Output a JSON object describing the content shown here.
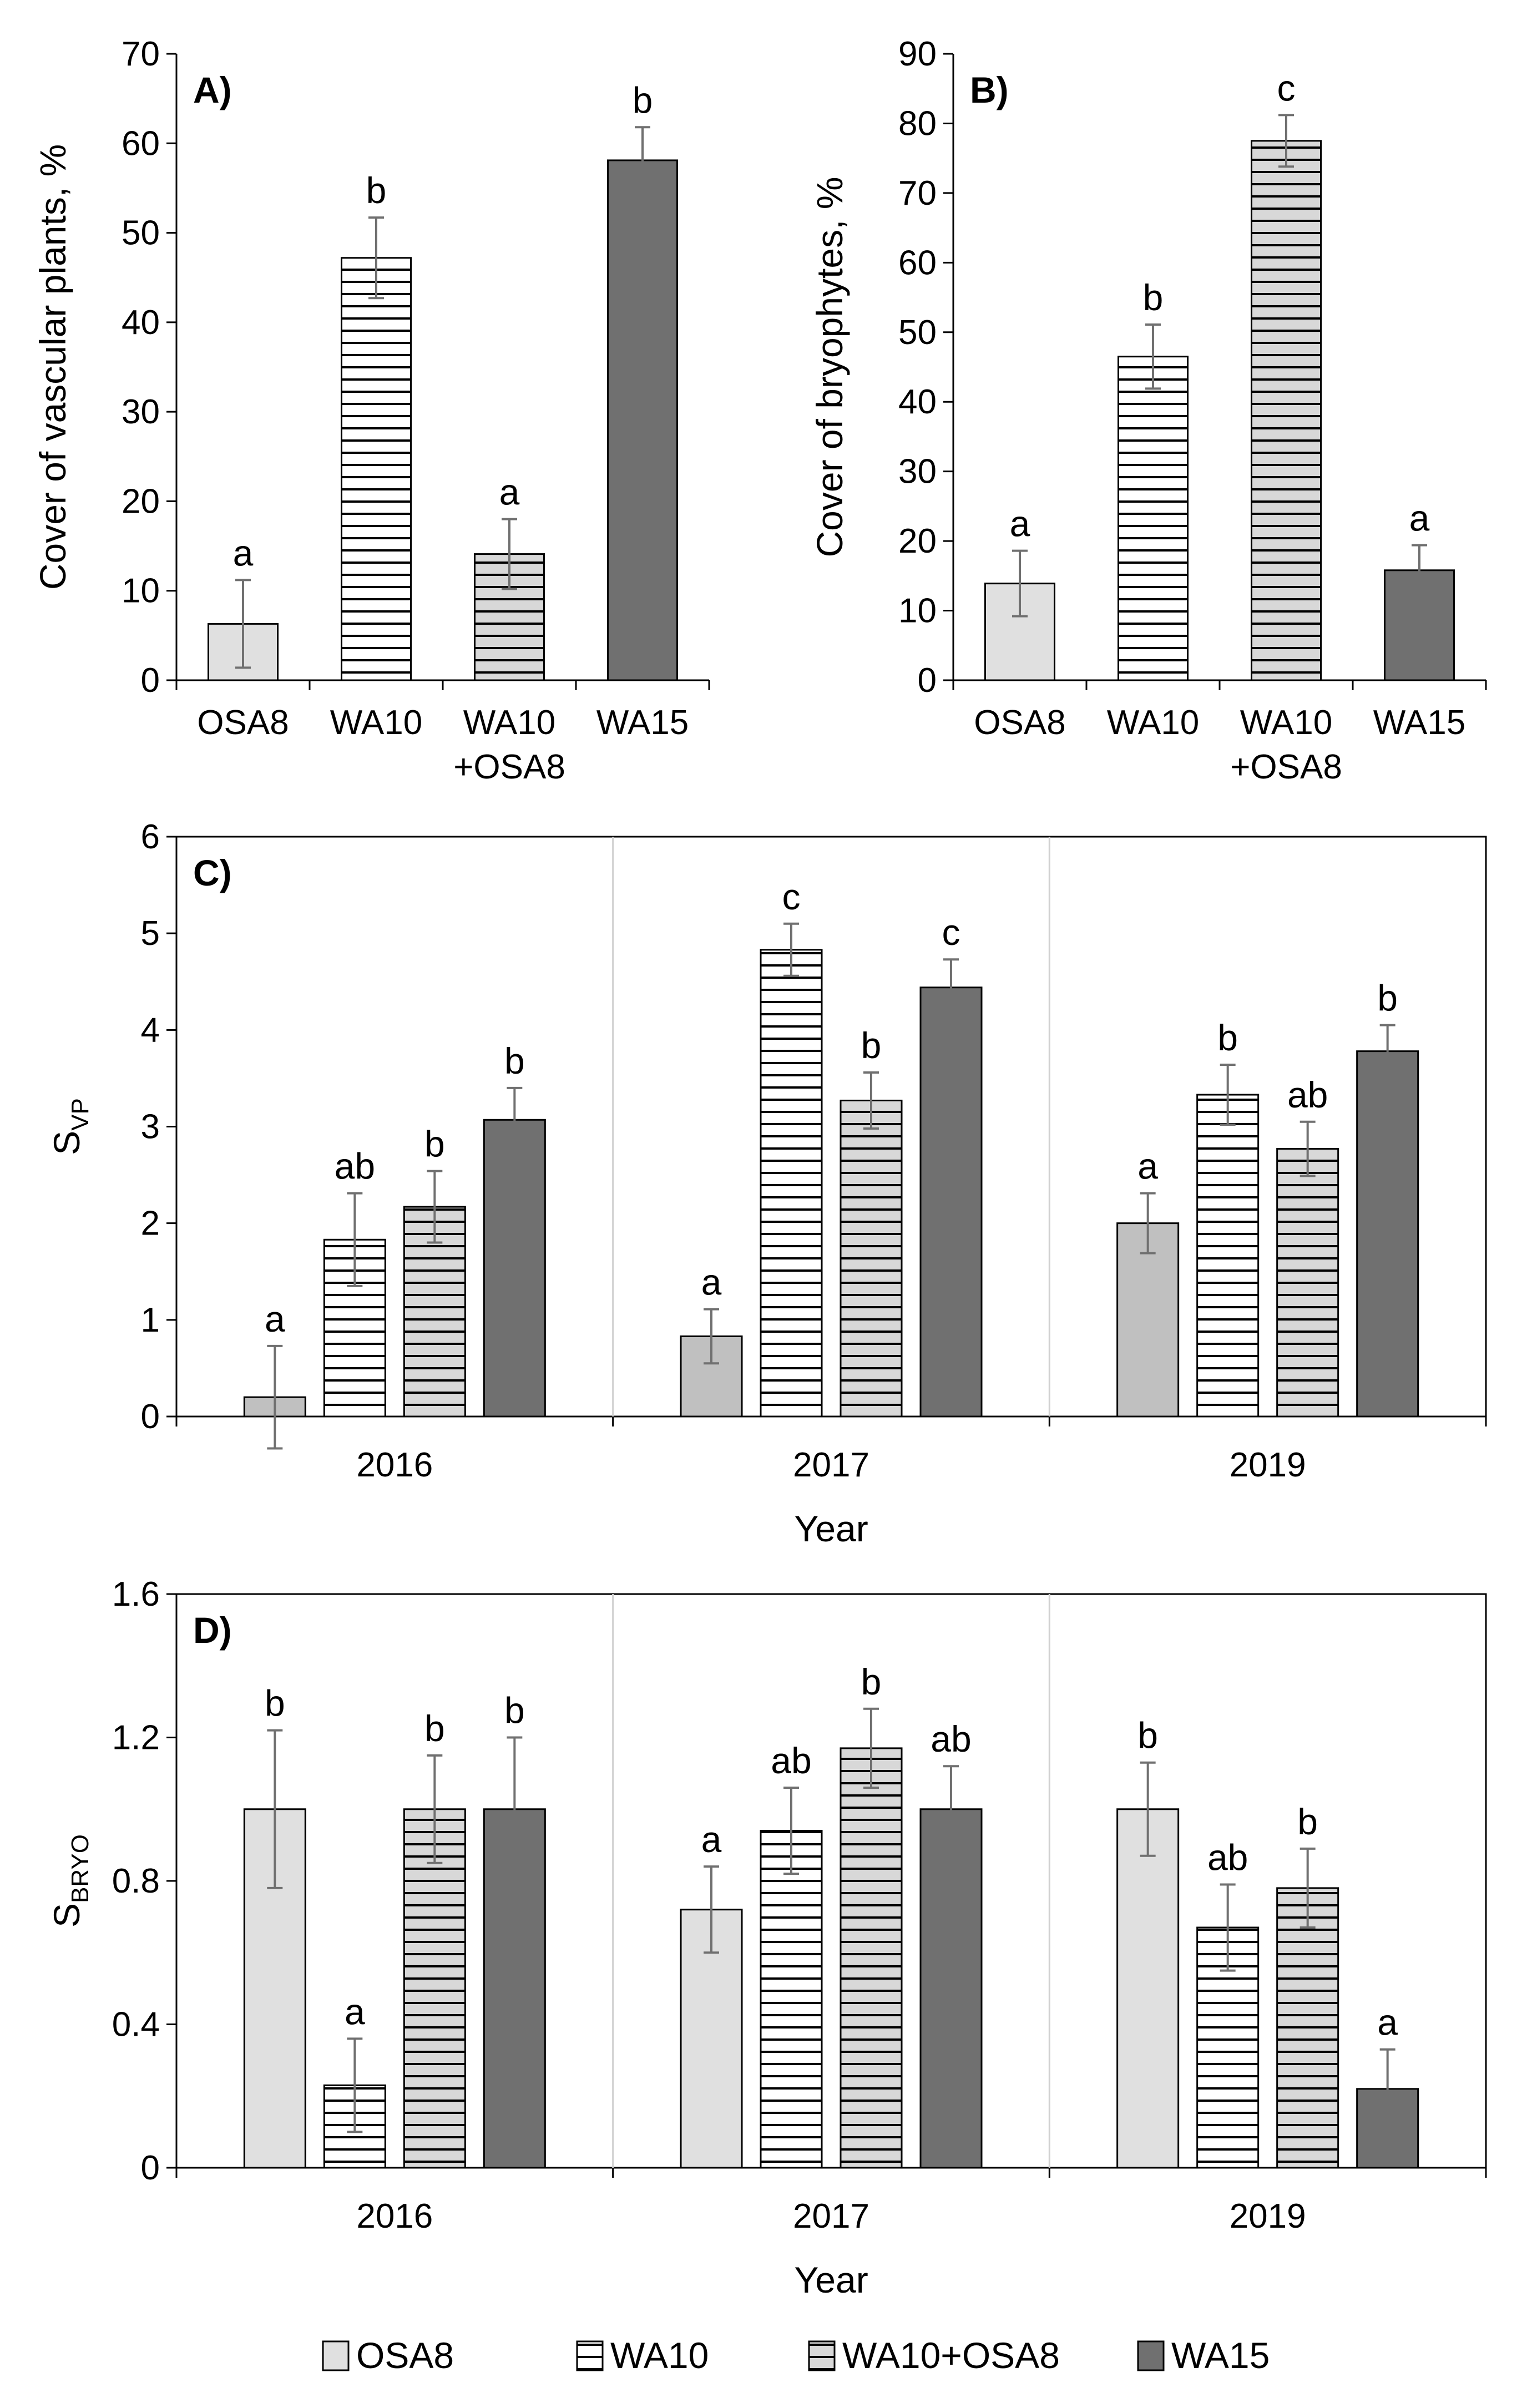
{
  "colors": {
    "OSA8_panelAB": "#e0e0e0",
    "OSA8_panelC": "#c0c0c0",
    "OSA8_panelD": "#e0e0e0",
    "WA10": "#ffffff",
    "WA10+OSA8": "#d8d8d8",
    "WA15": "#707070",
    "stripe": "#000000",
    "errorbar": "#707070",
    "separator": "#d0d0d0"
  },
  "chart_data": [
    {
      "id": "A",
      "type": "bar",
      "panel_label": "A)",
      "ylabel": "Cover of vascular plants, %",
      "xlabel": "",
      "ylim": [
        0,
        70
      ],
      "yticks": [
        "0",
        "10",
        "20",
        "30",
        "40",
        "50",
        "60",
        "70"
      ],
      "categories": [
        {
          "line1": "OSA8",
          "line2": ""
        },
        {
          "line1": "WA10",
          "line2": ""
        },
        {
          "line1": "WA10",
          "line2": "+OSA8"
        },
        {
          "line1": "WA15",
          "line2": ""
        }
      ],
      "series_keys": [
        "OSA8",
        "WA10",
        "WA10+OSA8",
        "WA15"
      ],
      "values": [
        6.3,
        47.2,
        14.1,
        58.1
      ],
      "errors": [
        4.9,
        4.5,
        3.9,
        3.7
      ],
      "letters": [
        "a",
        "b",
        "a",
        "b"
      ]
    },
    {
      "id": "B",
      "type": "bar",
      "panel_label": "B)",
      "ylabel": "Cover of bryophytes, %",
      "xlabel": "",
      "ylim": [
        0,
        90
      ],
      "yticks": [
        "0",
        "10",
        "20",
        "30",
        "40",
        "50",
        "60",
        "70",
        "80",
        "90"
      ],
      "categories": [
        {
          "line1": "OSA8",
          "line2": ""
        },
        {
          "line1": "WA10",
          "line2": ""
        },
        {
          "line1": "WA10",
          "line2": "+OSA8"
        },
        {
          "line1": "WA15",
          "line2": ""
        }
      ],
      "series_keys": [
        "OSA8",
        "WA10",
        "WA10+OSA8",
        "WA15"
      ],
      "values": [
        13.9,
        46.5,
        77.5,
        15.8
      ],
      "errors": [
        4.7,
        4.6,
        3.7,
        3.6
      ],
      "letters": [
        "a",
        "b",
        "c",
        "a"
      ]
    },
    {
      "id": "C",
      "type": "bar",
      "panel_label": "C)",
      "ylabel_main": "S",
      "ylabel_sub": "VP",
      "xlabel": "Year",
      "ylim": [
        0,
        6
      ],
      "yticks": [
        "0",
        "1",
        "2",
        "3",
        "4",
        "5",
        "6"
      ],
      "categories": [
        "2016",
        "2017",
        "2019"
      ],
      "series": [
        {
          "name": "OSA8",
          "values": [
            0.2,
            0.83,
            2.0
          ],
          "errors": [
            0.53,
            0.28,
            0.31
          ],
          "letters": [
            "a",
            "a",
            "a"
          ]
        },
        {
          "name": "WA10",
          "values": [
            1.83,
            4.83,
            3.33
          ],
          "errors": [
            0.48,
            0.27,
            0.31
          ],
          "letters": [
            "ab",
            "c",
            "b"
          ]
        },
        {
          "name": "WA10+OSA8",
          "values": [
            2.17,
            3.27,
            2.77
          ],
          "errors": [
            0.37,
            0.29,
            0.28
          ],
          "letters": [
            "b",
            "b",
            "ab"
          ]
        },
        {
          "name": "WA15",
          "values": [
            3.07,
            4.44,
            3.78
          ],
          "errors": [
            0.33,
            0.29,
            0.27
          ],
          "letters": [
            "b",
            "c",
            "b"
          ]
        }
      ]
    },
    {
      "id": "D",
      "type": "bar",
      "panel_label": "D)",
      "ylabel_main": "S",
      "ylabel_sub": "BRYO",
      "xlabel": "Year",
      "ylim": [
        0,
        1.6
      ],
      "yticks": [
        "0",
        "0.4",
        "0.8",
        "1.2",
        "1.6"
      ],
      "categories": [
        "2016",
        "2017",
        "2019"
      ],
      "series": [
        {
          "name": "OSA8",
          "values": [
            1.0,
            0.72,
            1.0
          ],
          "errors": [
            0.22,
            0.12,
            0.13
          ],
          "letters": [
            "b",
            "a",
            "b"
          ]
        },
        {
          "name": "WA10",
          "values": [
            0.23,
            0.94,
            0.67
          ],
          "errors": [
            0.13,
            0.12,
            0.12
          ],
          "letters": [
            "a",
            "ab",
            "ab"
          ]
        },
        {
          "name": "WA10+OSA8",
          "values": [
            1.0,
            1.17,
            0.78
          ],
          "errors": [
            0.15,
            0.11,
            0.11
          ],
          "letters": [
            "b",
            "b",
            "b"
          ]
        },
        {
          "name": "WA15",
          "values": [
            1.0,
            1.0,
            0.22
          ],
          "errors": [
            0.2,
            0.12,
            0.11
          ],
          "letters": [
            "b",
            "ab",
            "a"
          ]
        }
      ]
    }
  ],
  "legend": [
    {
      "key": "OSA8",
      "label": "OSA8"
    },
    {
      "key": "WA10",
      "label": "WA10"
    },
    {
      "key": "WA10+OSA8",
      "label": "WA10+OSA8"
    },
    {
      "key": "WA15",
      "label": "WA15"
    }
  ]
}
